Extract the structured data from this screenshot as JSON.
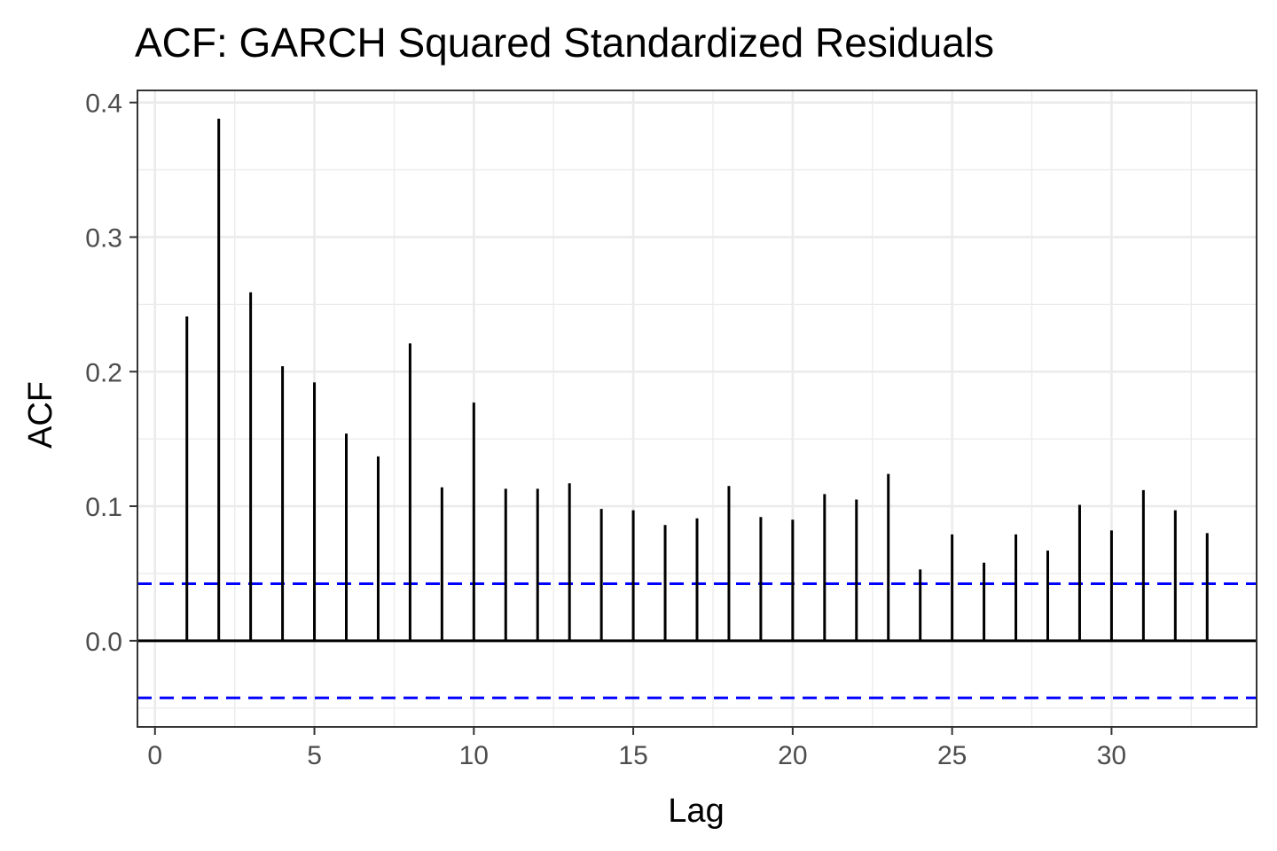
{
  "chart_data": {
    "type": "bar",
    "title": "ACF: GARCH Squared Standardized Residuals",
    "xlabel": "Lag",
    "ylabel": "ACF",
    "x": [
      1,
      2,
      3,
      4,
      5,
      6,
      7,
      8,
      9,
      10,
      11,
      12,
      13,
      14,
      15,
      16,
      17,
      18,
      19,
      20,
      21,
      22,
      23,
      24,
      25,
      26,
      27,
      28,
      29,
      30,
      31,
      32,
      33
    ],
    "values": [
      0.241,
      0.388,
      0.259,
      0.204,
      0.192,
      0.154,
      0.137,
      0.221,
      0.114,
      0.177,
      0.113,
      0.113,
      0.117,
      0.098,
      0.097,
      0.086,
      0.091,
      0.115,
      0.092,
      0.09,
      0.109,
      0.105,
      0.124,
      0.053,
      0.079,
      0.058,
      0.079,
      0.067,
      0.101,
      0.082,
      0.112,
      0.097,
      0.08
    ],
    "confidence_bound": 0.0424,
    "xlim": [
      -0.55,
      34.55
    ],
    "ylim": [
      -0.064,
      0.409
    ],
    "x_ticks": [
      0,
      5,
      10,
      15,
      20,
      25,
      30
    ],
    "x_tick_labels": [
      "0",
      "5",
      "10",
      "15",
      "20",
      "25",
      "30"
    ],
    "y_ticks": [
      0.0,
      0.1,
      0.2,
      0.3,
      0.4
    ],
    "y_tick_labels": [
      "0.0",
      "0.1",
      "0.2",
      "0.3",
      "0.4"
    ],
    "grid": true,
    "colors": {
      "stem": "#000000",
      "zero_line": "#000000",
      "confidence_line": "#0000ff",
      "grid": "#ebebeb",
      "panel_border": "#333333",
      "tick_text": "#4d4d4d"
    }
  }
}
